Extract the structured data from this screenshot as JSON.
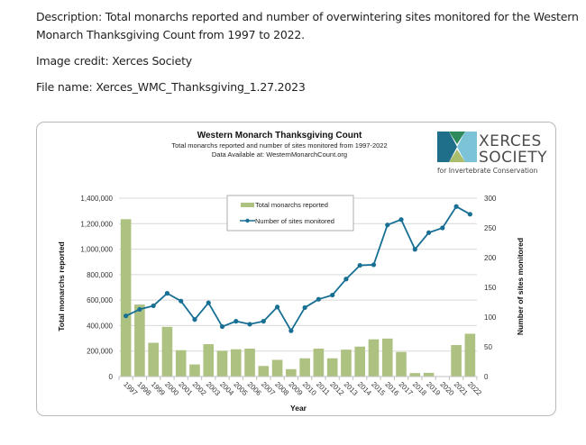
{
  "document": {
    "description_line1": "Description: Total monarchs reported and number of overwintering sites monitored for the Western",
    "description_line2": "Monarch Thanksgiving Count from 1997 to 2022.",
    "image_credit": "Image credit: Xerces Society",
    "file_name": "File name: Xerces_WMC_Thanksgiving_1.27.2023"
  },
  "logo": {
    "line1": "XERCES",
    "line2": "SOCIETY",
    "tagline": "for Invertebrate Conservation",
    "colors": {
      "dark_blue": "#1f6f8b",
      "light_blue": "#7cc3d8",
      "dark_green": "#2e8a5a",
      "light_green": "#a9bd6c"
    }
  },
  "colors": {
    "bar": "#adc180",
    "line": "#186f94",
    "grid": "#d9d9d9",
    "axis": "#bfbfbf"
  },
  "chart_data": {
    "type": "bar+line",
    "title": "Western Monarch Thanksgiving Count",
    "subtitle": "Total monarchs reported and number of sites monitored from 1997-2022",
    "subtitle2": "Data Available at: WesternMonarchCount.org",
    "xlabel": "Year",
    "ylabel": "Total monarchs reported",
    "y2label": "Number of sites monitored",
    "ylim": [
      0,
      1400000
    ],
    "y2lim": [
      0,
      300
    ],
    "yticks": [
      "0",
      "200,000",
      "400,000",
      "600,000",
      "800,000",
      "1,000,000",
      "1,200,000",
      "1,400,000"
    ],
    "y2ticks": [
      "0",
      "50",
      "100",
      "150",
      "200",
      "250",
      "300"
    ],
    "grid": true,
    "legend_position": "top-center",
    "categories": [
      "1997",
      "1998",
      "1999",
      "2000",
      "2001",
      "2002",
      "2003",
      "2004",
      "2005",
      "2006",
      "2007",
      "2008",
      "2009",
      "2010",
      "2011",
      "2012",
      "2013",
      "2014",
      "2015",
      "2016",
      "2017",
      "2018",
      "2019",
      "2020",
      "2021",
      "2022"
    ],
    "series": [
      {
        "name": "Total monarchs reported",
        "type": "bar",
        "axis": "left",
        "values": [
          1235000,
          565000,
          265000,
          390000,
          207000,
          95000,
          254000,
          202000,
          214000,
          219000,
          83000,
          131000,
          58000,
          143000,
          219000,
          143000,
          211000,
          235000,
          292000,
          298000,
          193000,
          27000,
          29000,
          2000,
          247000,
          336000
        ]
      },
      {
        "name": "Number of sites monitored",
        "type": "line",
        "axis": "right",
        "values": [
          102,
          113,
          119,
          140,
          127,
          96,
          124,
          84,
          93,
          88,
          93,
          117,
          77,
          116,
          130,
          137,
          164,
          187,
          188,
          255,
          264,
          214,
          242,
          250,
          286,
          273
        ]
      }
    ]
  }
}
